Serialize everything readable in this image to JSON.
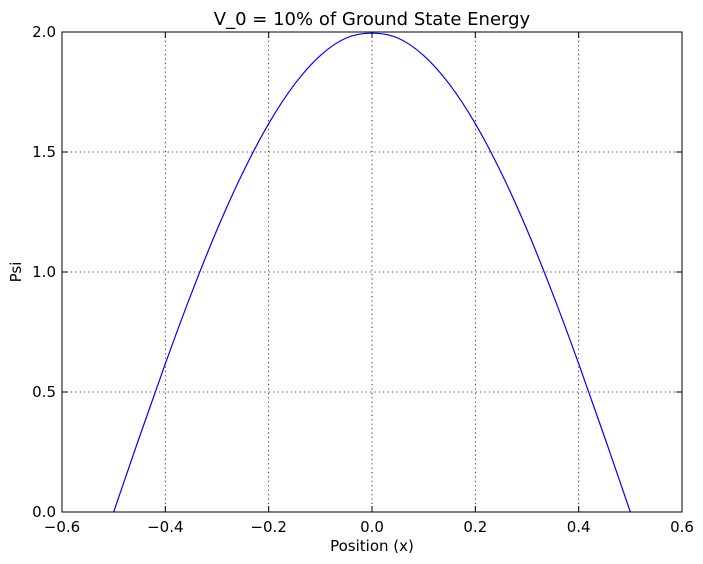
{
  "chart_data": {
    "type": "line",
    "title": "V_0 = 10% of Ground State Energy",
    "xlabel": "Position (x)",
    "ylabel": "Psi",
    "xlim": [
      -0.6,
      0.6
    ],
    "ylim": [
      0.0,
      2.0
    ],
    "xticks": [
      -0.6,
      -0.4,
      -0.2,
      0.0,
      0.2,
      0.4,
      0.6
    ],
    "xtick_labels": [
      "−0.6",
      "−0.4",
      "−0.2",
      "0.0",
      "0.2",
      "0.4",
      "0.6"
    ],
    "yticks": [
      0.0,
      0.5,
      1.0,
      1.5,
      2.0
    ],
    "ytick_labels": [
      "0.0",
      "0.5",
      "1.0",
      "1.5",
      "2.0"
    ],
    "grid": true,
    "series": [
      {
        "color": "#0000ff",
        "x": [
          -0.5,
          -0.45,
          -0.4,
          -0.35,
          -0.3,
          -0.25,
          -0.2,
          -0.15,
          -0.1,
          -0.05,
          0.0,
          0.05,
          0.1,
          0.15,
          0.2,
          0.25,
          0.3,
          0.35,
          0.4,
          0.45,
          0.5
        ],
        "y": [
          0.0,
          0.313,
          0.618,
          0.908,
          1.176,
          1.414,
          1.618,
          1.782,
          1.902,
          1.975,
          1.995,
          1.975,
          1.902,
          1.782,
          1.618,
          1.414,
          1.176,
          0.908,
          0.618,
          0.313,
          0.0
        ]
      }
    ]
  }
}
